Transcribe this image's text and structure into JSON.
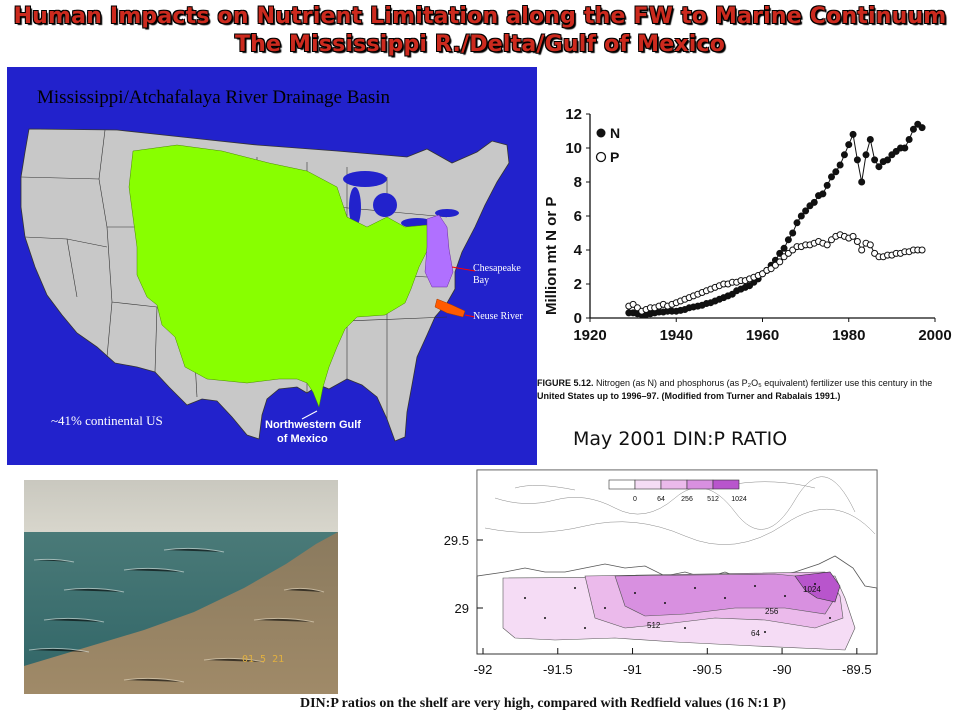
{
  "slide": {
    "title_line1": "Human Impacts on Nutrient Limitation along the FW to Marine Continuum",
    "title_line2": "The Mississippi R./Delta/Gulf of Mexico"
  },
  "map": {
    "title": "Mississippi/Atchafalaya River Drainage Basin",
    "label_chesapeake_1": "Chesapeake",
    "label_chesapeake_2": "Bay",
    "label_neuse": "Neuse River",
    "label_percent": "~41% continental US",
    "label_gulf_1": "Northwestern Gulf",
    "label_gulf_2": "of Mexico",
    "colors": {
      "ocean": "#2222cc",
      "land": "#c8c8c8",
      "basin": "#88ff00",
      "chesapeake": "#b070ff",
      "neuse": "#ff5a00"
    }
  },
  "fertilizer_chart": {
    "ylabel": "Million mt N or P",
    "legend_n": "N",
    "legend_p": "P",
    "y_ticks": [
      "0",
      "2",
      "4",
      "6",
      "8",
      "10",
      "12"
    ],
    "x_ticks": [
      "1920",
      "1940",
      "1960",
      "1980",
      "2000"
    ],
    "caption_label": "FIGURE 5.12.",
    "caption_line1": " Nitrogen (as N) and phosphorus (as P₂O₅ equivalent) fertilizer use this century in the",
    "caption_line2": "United States up to 1996–97. (Modified from Turner and Rabalais 1991.)"
  },
  "chart_data": {
    "type": "line",
    "xlabel": "",
    "ylabel": "Million mt N or P",
    "xlim": [
      1920,
      2000
    ],
    "ylim": [
      0,
      12
    ],
    "series": [
      {
        "name": "N",
        "marker": "filled-circle",
        "x": [
          1929,
          1930,
          1931,
          1932,
          1933,
          1934,
          1935,
          1936,
          1937,
          1938,
          1939,
          1940,
          1941,
          1942,
          1943,
          1944,
          1945,
          1946,
          1947,
          1948,
          1949,
          1950,
          1951,
          1952,
          1953,
          1954,
          1955,
          1956,
          1957,
          1958,
          1959,
          1960,
          1961,
          1962,
          1963,
          1964,
          1965,
          1966,
          1967,
          1968,
          1969,
          1970,
          1971,
          1972,
          1973,
          1974,
          1975,
          1976,
          1977,
          1978,
          1979,
          1980,
          1981,
          1982,
          1983,
          1984,
          1985,
          1986,
          1987,
          1988,
          1989,
          1990,
          1991,
          1992,
          1993,
          1994,
          1995,
          1996,
          1997
        ],
        "values": [
          0.3,
          0.3,
          0.25,
          0.2,
          0.2,
          0.25,
          0.3,
          0.35,
          0.35,
          0.4,
          0.4,
          0.4,
          0.45,
          0.5,
          0.6,
          0.65,
          0.7,
          0.75,
          0.85,
          0.9,
          1.0,
          1.1,
          1.2,
          1.3,
          1.4,
          1.6,
          1.7,
          1.8,
          1.9,
          2.1,
          2.3,
          2.6,
          2.8,
          3.1,
          3.4,
          3.8,
          4.1,
          4.6,
          5.0,
          5.6,
          6.0,
          6.3,
          6.6,
          6.8,
          7.2,
          7.3,
          7.8,
          8.3,
          8.6,
          9.0,
          9.6,
          10.2,
          10.8,
          9.3,
          8.0,
          9.6,
          10.5,
          9.3,
          8.9,
          9.2,
          9.3,
          9.6,
          9.8,
          10.0,
          10.0,
          10.5,
          11.1,
          11.4,
          11.2
        ]
      },
      {
        "name": "P",
        "marker": "open-circle",
        "x": [
          1929,
          1930,
          1931,
          1932,
          1933,
          1934,
          1935,
          1936,
          1937,
          1938,
          1939,
          1940,
          1941,
          1942,
          1943,
          1944,
          1945,
          1946,
          1947,
          1948,
          1949,
          1950,
          1951,
          1952,
          1953,
          1954,
          1955,
          1956,
          1957,
          1958,
          1959,
          1960,
          1961,
          1962,
          1963,
          1964,
          1965,
          1966,
          1967,
          1968,
          1969,
          1970,
          1971,
          1972,
          1973,
          1974,
          1975,
          1976,
          1977,
          1978,
          1979,
          1980,
          1981,
          1982,
          1983,
          1984,
          1985,
          1986,
          1987,
          1988,
          1989,
          1990,
          1991,
          1992,
          1993,
          1994,
          1995,
          1996,
          1997
        ],
        "values": [
          0.7,
          0.8,
          0.6,
          0.4,
          0.5,
          0.6,
          0.6,
          0.7,
          0.8,
          0.7,
          0.8,
          0.9,
          1.0,
          1.1,
          1.2,
          1.3,
          1.4,
          1.5,
          1.6,
          1.7,
          1.8,
          1.9,
          2.0,
          2.0,
          2.1,
          2.1,
          2.2,
          2.2,
          2.3,
          2.4,
          2.5,
          2.6,
          2.8,
          2.9,
          3.1,
          3.3,
          3.6,
          3.8,
          4.0,
          4.2,
          4.2,
          4.3,
          4.3,
          4.4,
          4.5,
          4.4,
          4.3,
          4.6,
          4.8,
          4.9,
          4.8,
          4.7,
          4.8,
          4.5,
          4.0,
          4.4,
          4.3,
          3.8,
          3.6,
          3.6,
          3.7,
          3.7,
          3.8,
          3.8,
          3.9,
          3.9,
          4.0,
          4.0,
          4.0
        ]
      }
    ]
  },
  "dinp_map": {
    "heading": "May 2001 DIN:P RATIO",
    "legend_ticks": [
      "0",
      "64",
      "256",
      "512",
      "1024"
    ],
    "legend_colors": [
      "#ffffff",
      "#f5dcf5",
      "#ebbaeb",
      "#d890e0",
      "#b855cc"
    ],
    "y_ticks": [
      "29.5",
      "29"
    ],
    "x_ticks": [
      "-92",
      "-91.5",
      "-91",
      "-90.5",
      "-90",
      "-89.5"
    ],
    "contour_labels": [
      "1024",
      "256",
      "512",
      "64"
    ]
  },
  "photo": {
    "date_stamp": "01 5 21"
  },
  "bottom_caption": "DIN:P ratios on the shelf are very high, compared with Redfield values (16 N:1 P)"
}
